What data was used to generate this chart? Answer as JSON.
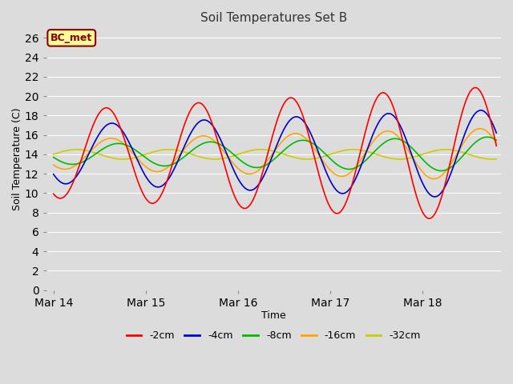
{
  "title": "Soil Temperatures Set B",
  "xlabel": "Time",
  "ylabel": "Soil Temperature (C)",
  "annotation_text": "BC_met",
  "annotation_bbox": {
    "boxstyle": "round,pad=0.3",
    "facecolor": "#FFFF99",
    "edgecolor": "#8B0000",
    "linewidth": 1.5
  },
  "annotation_fontsize": 9,
  "annotation_fontcolor": "#8B0000",
  "annotation_fontweight": "bold",
  "xtick_labels": [
    "Mar 14",
    "Mar 15",
    "Mar 16",
    "Mar 17",
    "Mar 18"
  ],
  "ytick_max": 26,
  "ytick_min": 0,
  "ytick_step": 2,
  "ylim": [
    0,
    27
  ],
  "xlim": [
    -0.08,
    4.85
  ],
  "background_color": "#DCDCDC",
  "plot_bg_color": "#DCDCDC",
  "grid_color": "#FFFFFF",
  "lines": {
    "-2cm": {
      "color": "#FF0000",
      "linewidth": 1.2
    },
    "-4cm": {
      "color": "#0000CC",
      "linewidth": 1.2
    },
    "-8cm": {
      "color": "#00BB00",
      "linewidth": 1.2
    },
    "-16cm": {
      "color": "#FFA500",
      "linewidth": 1.2
    },
    "-32cm": {
      "color": "#CCCC00",
      "linewidth": 1.2
    }
  },
  "legend_labels": [
    "-2cm",
    "-4cm",
    "-8cm",
    "-16cm",
    "-32cm"
  ],
  "legend_colors": [
    "#FF0000",
    "#0000CC",
    "#00BB00",
    "#FFA500",
    "#CCCC00"
  ],
  "mean": 14.0,
  "period": 1.0,
  "amp_2_base": 4.5,
  "amp_2_grow": 2.5,
  "phase_2": 0.32,
  "amp_4_base": 3.0,
  "amp_4_grow": 1.6,
  "phase_4": 0.38,
  "amp_8_base": 1.0,
  "amp_8_grow": 0.8,
  "phase_8": 0.45,
  "amp_16_base": 1.5,
  "amp_16_grow": 1.2,
  "phase_16": 0.37,
  "amp_32": 0.5,
  "phase_32": 0.0
}
